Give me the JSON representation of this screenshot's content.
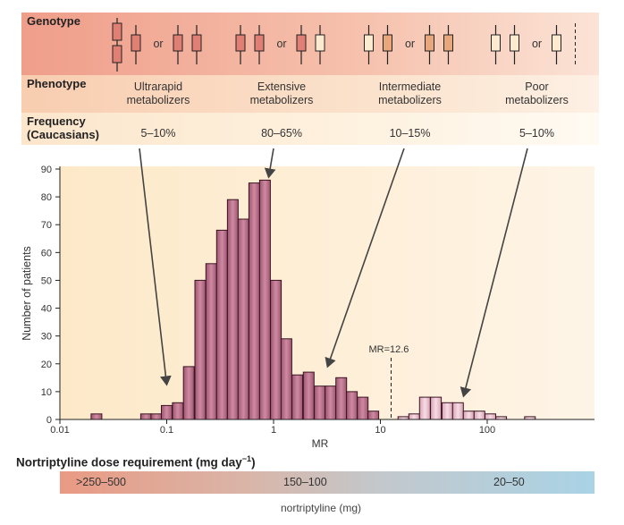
{
  "header": {
    "genotype_label": "Genotype",
    "phenotype_label": "Phenotype",
    "frequency_label_1": "Frequency",
    "frequency_label_2": "(Caucasians)",
    "or_text": "or",
    "allele_colors": {
      "functional": "#e07f73",
      "reduced": "#e9a77e",
      "nonfunctional": "#fdebd0"
    },
    "columns": [
      {
        "phenotype_1": "Ultrarapid",
        "phenotype_2": "metabolizers",
        "frequency": "5–10%",
        "genotype_a": [
          "functional-duplicated",
          "functional"
        ],
        "genotype_b": [
          "functional",
          "functional"
        ]
      },
      {
        "phenotype_1": "Extensive",
        "phenotype_2": "metabolizers",
        "frequency": "80–65%",
        "genotype_a": [
          "functional",
          "functional"
        ],
        "genotype_b": [
          "functional",
          "nonfunctional"
        ]
      },
      {
        "phenotype_1": "Intermediate",
        "phenotype_2": "metabolizers",
        "frequency": "10–15%",
        "genotype_a": [
          "nonfunctional",
          "reduced"
        ],
        "genotype_b": [
          "reduced",
          "reduced"
        ]
      },
      {
        "phenotype_1": "Poor",
        "phenotype_2": "metabolizers",
        "frequency": "5–10%",
        "genotype_a": [
          "nonfunctional",
          "nonfunctional"
        ],
        "genotype_b": [
          "nonfunctional",
          "deleted"
        ]
      }
    ]
  },
  "chart_data": {
    "type": "bar",
    "subtype": "histogram",
    "xlabel": "MR",
    "ylabel": "Number of patients",
    "xscale": "log",
    "xlim": [
      0.01,
      500
    ],
    "ylim": [
      0,
      90
    ],
    "xticks": [
      "0.01",
      "0.1",
      "1",
      "10",
      "100"
    ],
    "yticks": [
      "0",
      "10",
      "20",
      "30",
      "40",
      "50",
      "60",
      "70",
      "80",
      "90"
    ],
    "bin_width_log10": 0.1,
    "grid": false,
    "series": [
      {
        "group": "extensive-intermediate-ultrarapid",
        "color": "#b8718a",
        "mr": [
          0.022,
          0.064,
          0.08,
          0.1,
          0.127,
          0.161,
          0.206,
          0.261,
          0.329,
          0.415,
          0.522,
          0.659,
          0.83,
          1.05,
          1.32,
          1.67,
          2.13,
          2.7,
          3.41,
          4.3,
          5.41,
          6.82,
          8.59
        ],
        "values": [
          2,
          2,
          2,
          5,
          6,
          19,
          50,
          56,
          68,
          79,
          72,
          85,
          86,
          50,
          29,
          16,
          17,
          12,
          12,
          15,
          10,
          8,
          3
        ]
      },
      {
        "group": "poor",
        "color": "#eac2cf",
        "mr": [
          16.4,
          20.7,
          26.1,
          33.1,
          42.3,
          53.2,
          67.1,
          84.5,
          107,
          135,
          251
        ],
        "values": [
          1,
          2,
          8,
          8,
          6,
          6,
          3,
          3,
          2,
          1,
          1
        ]
      }
    ],
    "threshold": {
      "mr": 12.6,
      "label": "MR=12.6"
    },
    "arrows_point_to_mr": [
      0.1,
      0.9,
      3.2,
      60
    ]
  },
  "dose": {
    "title": "Nortriptyline dose requirement (mg day",
    "title_sup": "−1",
    "title_end": ")",
    "low_mr_label": ">250–500",
    "mid_label": "150–100",
    "high_mr_label": "20–50",
    "unit_label": "nortriptyline (mg)"
  }
}
